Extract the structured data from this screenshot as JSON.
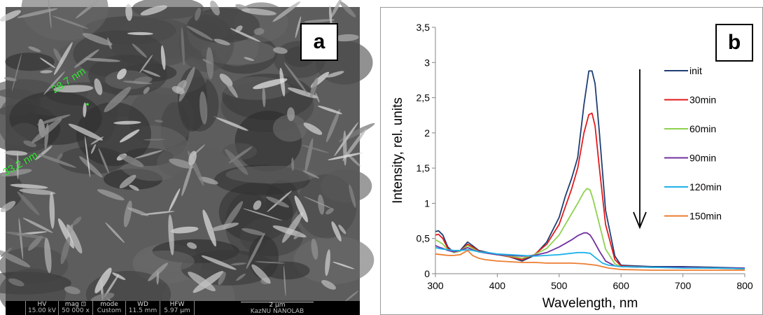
{
  "panel_a": {
    "letter": "a",
    "labels": [
      "28.7 nm",
      "33.2 nm"
    ],
    "info_bar": [
      {
        "head": "HV",
        "val": "15.00 kV"
      },
      {
        "head": "mag ⊡",
        "val": "50 000 x"
      },
      {
        "head": "mode",
        "val": "Custom"
      },
      {
        "head": "WD",
        "val": "11.5 mm"
      },
      {
        "head": "HFW",
        "val": "5.97 µm"
      }
    ],
    "scale_label": "2 µm",
    "lab_name": "KazNU NANOLAB"
  },
  "panel_b": {
    "letter": "b"
  },
  "colors": {
    "init": "#1f3f73",
    "30min": "#e31a1c",
    "60min": "#8fd14f",
    "90min": "#7030a0",
    "120min": "#1fb2e8",
    "150min": "#ed7d31",
    "sem_label": "#2ee82e"
  },
  "chart_data": {
    "type": "line",
    "xlabel": "Wavelength, nm",
    "ylabel": "Intensity, rel. units",
    "xlim": [
      300,
      800
    ],
    "ylim": [
      0,
      3.5
    ],
    "xticks": [
      "300",
      "400",
      "500",
      "600",
      "700",
      "800"
    ],
    "yticks": [
      "0",
      "0,5",
      "1",
      "1,5",
      "2",
      "2,5",
      "3",
      "3,5"
    ],
    "grid": false,
    "legend_position": "right",
    "annotation": "arrow pointing down, indicating decreasing intensity with time",
    "series": [
      {
        "name": "init",
        "color": "#1f3f73",
        "x": [
          300,
          305,
          312,
          320,
          330,
          340,
          352,
          360,
          370,
          385,
          400,
          420,
          440,
          460,
          480,
          500,
          510,
          520,
          530,
          540,
          548,
          553,
          558,
          565,
          575,
          590,
          600,
          650,
          700,
          750,
          800
        ],
        "y": [
          0.6,
          0.61,
          0.55,
          0.38,
          0.3,
          0.33,
          0.45,
          0.4,
          0.33,
          0.3,
          0.27,
          0.24,
          0.18,
          0.26,
          0.45,
          0.8,
          1.1,
          1.35,
          1.65,
          2.4,
          2.88,
          2.88,
          2.7,
          2.0,
          0.9,
          0.25,
          0.12,
          0.1,
          0.1,
          0.09,
          0.08
        ]
      },
      {
        "name": "30min",
        "color": "#e31a1c",
        "x": [
          300,
          305,
          312,
          320,
          330,
          340,
          352,
          360,
          370,
          385,
          400,
          420,
          440,
          460,
          480,
          500,
          510,
          520,
          530,
          540,
          548,
          553,
          558,
          565,
          575,
          590,
          600,
          650,
          700,
          750,
          800
        ],
        "y": [
          0.55,
          0.56,
          0.5,
          0.36,
          0.3,
          0.32,
          0.42,
          0.38,
          0.32,
          0.29,
          0.27,
          0.24,
          0.2,
          0.27,
          0.42,
          0.7,
          0.95,
          1.2,
          1.5,
          2.0,
          2.26,
          2.28,
          2.1,
          1.5,
          0.7,
          0.2,
          0.11,
          0.09,
          0.09,
          0.08,
          0.07
        ]
      },
      {
        "name": "60min",
        "color": "#8fd14f",
        "x": [
          300,
          305,
          312,
          320,
          330,
          340,
          352,
          360,
          370,
          385,
          400,
          420,
          440,
          460,
          480,
          500,
          510,
          520,
          530,
          540,
          545,
          550,
          555,
          565,
          575,
          590,
          600,
          650,
          700,
          750,
          800
        ],
        "y": [
          0.48,
          0.46,
          0.42,
          0.34,
          0.3,
          0.32,
          0.4,
          0.36,
          0.31,
          0.29,
          0.27,
          0.25,
          0.22,
          0.27,
          0.36,
          0.55,
          0.7,
          0.85,
          1.0,
          1.16,
          1.21,
          1.19,
          1.05,
          0.7,
          0.35,
          0.14,
          0.1,
          0.09,
          0.09,
          0.08,
          0.07
        ]
      },
      {
        "name": "90min",
        "color": "#7030a0",
        "x": [
          300,
          305,
          312,
          320,
          330,
          340,
          352,
          360,
          370,
          385,
          400,
          420,
          440,
          460,
          480,
          500,
          510,
          520,
          530,
          540,
          545,
          550,
          555,
          565,
          575,
          590,
          600,
          650,
          700,
          750,
          800
        ],
        "y": [
          0.4,
          0.38,
          0.36,
          0.33,
          0.31,
          0.33,
          0.37,
          0.34,
          0.31,
          0.29,
          0.27,
          0.26,
          0.25,
          0.26,
          0.3,
          0.38,
          0.43,
          0.48,
          0.54,
          0.58,
          0.58,
          0.55,
          0.48,
          0.32,
          0.18,
          0.11,
          0.1,
          0.09,
          0.09,
          0.08,
          0.08
        ]
      },
      {
        "name": "120min",
        "color": "#1fb2e8",
        "x": [
          300,
          305,
          312,
          320,
          330,
          340,
          352,
          360,
          370,
          385,
          400,
          420,
          440,
          460,
          480,
          500,
          510,
          520,
          530,
          540,
          550,
          560,
          570,
          580,
          590,
          600,
          650,
          700,
          750,
          800
        ],
        "y": [
          0.37,
          0.36,
          0.35,
          0.34,
          0.33,
          0.33,
          0.34,
          0.33,
          0.31,
          0.3,
          0.28,
          0.27,
          0.26,
          0.25,
          0.26,
          0.27,
          0.28,
          0.29,
          0.3,
          0.3,
          0.29,
          0.22,
          0.15,
          0.12,
          0.11,
          0.1,
          0.09,
          0.08,
          0.08,
          0.07
        ]
      },
      {
        "name": "150min",
        "color": "#ed7d31",
        "x": [
          300,
          310,
          320,
          330,
          340,
          352,
          360,
          370,
          380,
          390,
          400,
          420,
          440,
          460,
          480,
          500,
          520,
          540,
          560,
          580,
          600,
          650,
          700,
          750,
          800
        ],
        "y": [
          0.28,
          0.27,
          0.26,
          0.26,
          0.27,
          0.33,
          0.26,
          0.22,
          0.2,
          0.19,
          0.18,
          0.17,
          0.16,
          0.16,
          0.15,
          0.15,
          0.15,
          0.14,
          0.12,
          0.08,
          0.06,
          0.05,
          0.05,
          0.05,
          0.05
        ]
      }
    ]
  }
}
